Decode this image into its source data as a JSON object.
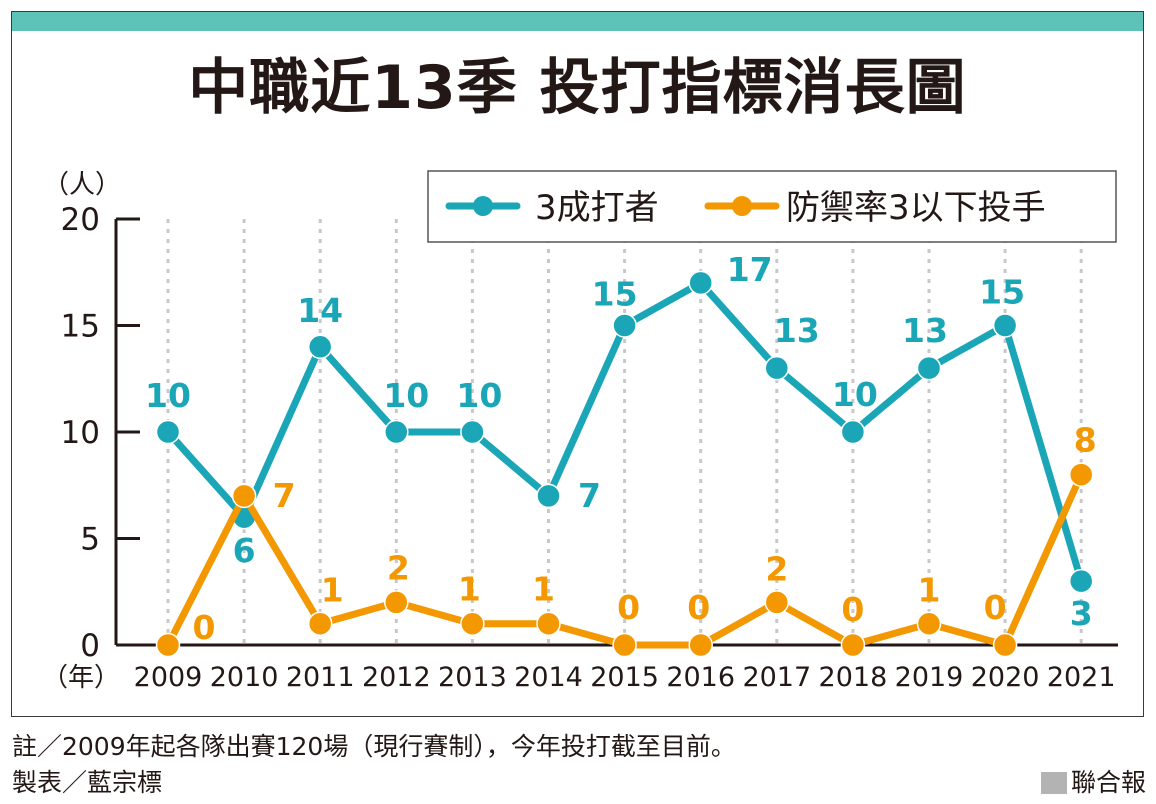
{
  "title": "中職近13季 投打指標消長圖",
  "colors": {
    "series_a": "#1aa6b7",
    "series_b": "#f39800",
    "topbar": "#5dc2b8",
    "axis": "#231815",
    "grid": "#c8c8c8"
  },
  "chart_data": {
    "type": "line",
    "title": "中職近13季 投打指標消長圖",
    "ylabel": "（人）",
    "xlabel": "（年）",
    "x": [
      "2009",
      "2010",
      "2011",
      "2012",
      "2013",
      "2014",
      "2015",
      "2016",
      "2017",
      "2018",
      "2019",
      "2020",
      "2021"
    ],
    "ylim": [
      0,
      20
    ],
    "yticks": [
      "0",
      "5",
      "10",
      "15",
      "20"
    ],
    "legend_position": "top-right",
    "series": [
      {
        "name": "3成打者",
        "color": "#1aa6b7",
        "values": [
          10,
          6,
          14,
          10,
          10,
          7,
          15,
          17,
          13,
          10,
          13,
          15,
          3
        ]
      },
      {
        "name": "防禦率3以下投手",
        "color": "#f39800",
        "values": [
          0,
          7,
          1,
          2,
          1,
          1,
          0,
          0,
          2,
          0,
          1,
          0,
          8
        ]
      }
    ]
  },
  "footer": {
    "note": "註／2009年起各隊出賽120場（現行賽制），今年投打截至目前。",
    "credit": "製表／藍宗標",
    "source": "聯合報"
  }
}
